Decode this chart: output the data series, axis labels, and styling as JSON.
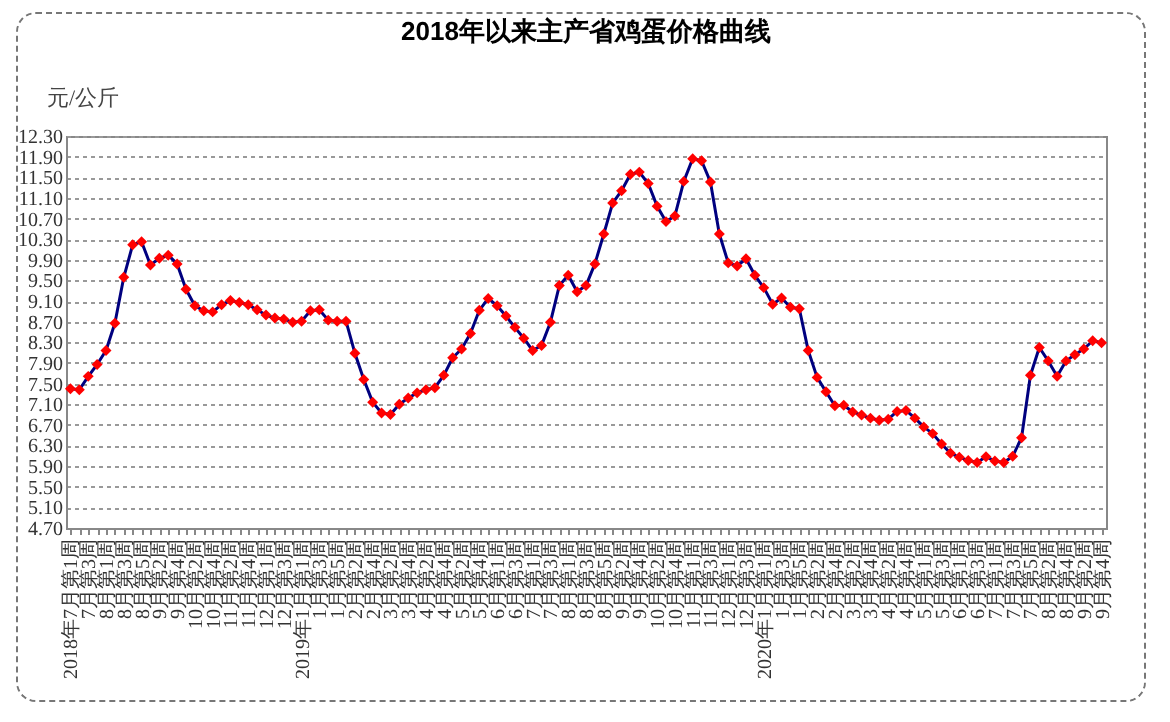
{
  "chart_data": {
    "type": "line",
    "title": "2018年以来主产省鸡蛋价格曲线",
    "ylabel": "元/公斤",
    "categories": [
      "2018年7月第1周",
      null,
      "7月第3周",
      null,
      "8月第1周",
      null,
      "8月第3周",
      null,
      "8月第5周",
      null,
      "9月第2周",
      null,
      "9月第4周",
      null,
      "10月第2周",
      null,
      "10月第4周",
      null,
      "11月第2周",
      null,
      "11月第4周",
      null,
      "12月第1周",
      null,
      "12月第3周",
      null,
      "2019年1月第1周",
      null,
      "1月第3周",
      null,
      "1月第5周",
      null,
      "2月第2周",
      null,
      "2月第4周",
      null,
      "3月第2周",
      null,
      "3月第4周",
      null,
      "4月第2周",
      null,
      "4月第4周",
      null,
      "5月第2周",
      null,
      "5月第4周",
      null,
      "6月第1周",
      null,
      "6月第3周",
      null,
      "7月第1周",
      null,
      "7月第3周",
      null,
      "8月第1周",
      null,
      "8月第3周",
      null,
      "8月第5周",
      null,
      "9月第2周",
      null,
      "9月第4周",
      null,
      "10月第2周",
      null,
      "10月第4周",
      null,
      "11月第1周",
      null,
      "11月第3周",
      null,
      "12月第1周",
      null,
      "12月第3周",
      null,
      "2020年1月第1周",
      null,
      "1月第3周",
      null,
      "1月第5周",
      null,
      "2月第2周",
      null,
      "2月第4周",
      null,
      "3月第2周",
      null,
      "3月第4周",
      null,
      "4月第2周",
      null,
      "4月第4周",
      null,
      "5月第1周",
      null,
      "5月第3周",
      null,
      "6月第1周",
      null,
      "6月第3周",
      null,
      "7月第1周",
      null,
      "7月第3周",
      null,
      "7月第5周",
      null,
      "8月第2周",
      null,
      "8月第4周",
      null,
      "9月第2周",
      null,
      "9月第4周"
    ],
    "series": [
      {
        "color": "#00007f",
        "values": [
          7.4,
          7.38,
          7.64,
          7.87,
          8.14,
          8.67,
          9.56,
          10.19,
          10.25,
          9.8,
          9.93,
          9.99,
          9.82,
          9.33,
          9.01,
          8.91,
          8.89,
          9.03,
          9.11,
          9.07,
          9.03,
          8.93,
          8.83,
          8.77,
          8.75,
          8.69,
          8.71,
          8.91,
          8.93,
          8.73,
          8.71,
          8.71,
          8.09,
          7.58,
          7.14,
          6.93,
          6.9,
          7.1,
          7.22,
          7.32,
          7.38,
          7.42,
          7.66,
          8.0,
          8.17,
          8.47,
          8.92,
          9.15,
          9.01,
          8.81,
          8.59,
          8.38,
          8.14,
          8.24,
          8.69,
          9.4,
          9.6,
          9.28,
          9.4,
          9.82,
          10.4,
          11.0,
          11.24,
          11.56,
          11.6,
          11.38,
          10.94,
          10.64,
          10.75,
          11.42,
          11.86,
          11.82,
          11.41,
          10.4,
          9.84,
          9.78,
          9.92,
          9.6,
          9.36,
          9.04,
          9.16,
          8.98,
          8.95,
          8.14,
          7.62,
          7.34,
          7.07,
          7.08,
          6.95,
          6.89,
          6.83,
          6.79,
          6.81,
          6.96,
          6.98,
          6.83,
          6.66,
          6.53,
          6.33,
          6.15,
          6.07,
          6.01,
          5.97,
          6.08,
          6.0,
          5.97,
          6.09,
          6.45,
          7.66,
          8.2,
          7.94,
          7.64,
          7.94,
          8.06,
          8.17,
          8.33,
          8.29
        ],
        "colors": [
          "#ff0000",
          "#ff0000",
          "#ff0000",
          "#ff0000",
          "#ff0000",
          "#ff0000",
          "#ff0000",
          "#ff0000",
          "#ff0000",
          "#ff0000",
          "#ff0000",
          "#ff0000",
          "#ff0000",
          "#ff0000",
          "#ff0000",
          "#ff0000",
          "#ff0000",
          "#ff0000",
          "#ff0000",
          "#ff0000",
          "#ff0000",
          "#ff0000",
          "#ff0000",
          "#ff0000",
          "#ff0000",
          "#ff0000",
          "#ff0000",
          "#ff0000",
          "#ff0000",
          "#ff0000",
          "#ff0000",
          "#ff0000",
          "#ff0000",
          "#ff0000",
          "#ff0000",
          "#ff0000",
          "#ff0000",
          "#ff0000",
          "#ff0000",
          "#ff0000",
          "#ff0000",
          "#ff0000",
          "#ff0000",
          "#ff0000",
          "#ff0000",
          "#ff0000",
          "#ff0000",
          "#ff0000",
          "#ff0000",
          "#ff0000",
          "#ff0000",
          "#ff0000",
          "#ff0000",
          "#ff0000",
          "#ff0000",
          "#ff0000",
          "#ff0000",
          "#ff0000",
          "#ff0000",
          "#ff0000",
          "#ff0000",
          "#ff0000",
          "#ff0000",
          "#ff0000",
          "#ff0000",
          "#ff0000",
          "#ff0000",
          "#ff0000",
          "#ff0000",
          "#ff0000",
          "#ff0000",
          "#ff0000",
          "#ff0000",
          "#ff0000",
          "#ff0000",
          "#ff0000",
          "#ff0000",
          "#ff0000",
          "#ff0000",
          "#ff0000",
          "#ff0000",
          "#ff0000",
          "#ff0000",
          "#ff0000",
          "#ff0000",
          "#ff0000",
          "#ff0000",
          "#ff0000",
          "#ff0000",
          "#ff0000",
          "#ff0000",
          "#ff0000",
          "#ff0000",
          "#ff0000",
          "#ff0000",
          "#ff0000",
          "#ff0000",
          "#ff0000",
          "#ff0000",
          "#ff0000",
          "#ff0000",
          "#ff0000",
          "#ff0000",
          "#ff0000",
          "#ff0000",
          "#ff0000",
          "#ff0000",
          "#ff0000",
          "#ff0000",
          "#ff0000",
          "#ff0000",
          "#ff0000",
          "#ff0000",
          "#ff0000",
          "#ff0000",
          "#ff0000",
          "#ff0000"
        ]
      }
    ],
    "ylim": [
      4.7,
      12.3
    ],
    "yticks": [
      {
        "value": 4.7,
        "label": "4.70"
      },
      {
        "value": 5.1,
        "label": "5.10"
      },
      {
        "value": 5.5,
        "label": "5.50"
      },
      {
        "value": 5.9,
        "label": "5.90"
      },
      {
        "value": 6.3,
        "label": "6.30"
      },
      {
        "value": 6.7,
        "label": "6.70"
      },
      {
        "value": 7.1,
        "label": "7.10"
      },
      {
        "value": 7.5,
        "label": "7.50"
      },
      {
        "value": 7.9,
        "label": "7.90"
      },
      {
        "value": 8.3,
        "label": "8.30"
      },
      {
        "value": 8.7,
        "label": "8.70"
      },
      {
        "value": 9.1,
        "label": "9.10"
      },
      {
        "value": 9.5,
        "label": "9.50"
      },
      {
        "value": 9.9,
        "label": "9.90"
      },
      {
        "value": 10.3,
        "label": "10.30"
      },
      {
        "value": 10.7,
        "label": "10.70"
      },
      {
        "value": 11.1,
        "label": "11.10"
      },
      {
        "value": 11.5,
        "label": "11.50"
      },
      {
        "value": 11.9,
        "label": "11.90"
      },
      {
        "value": 12.3,
        "label": "12.30"
      }
    ],
    "grid": "y",
    "marker": "diamond",
    "line_style": "solid"
  }
}
